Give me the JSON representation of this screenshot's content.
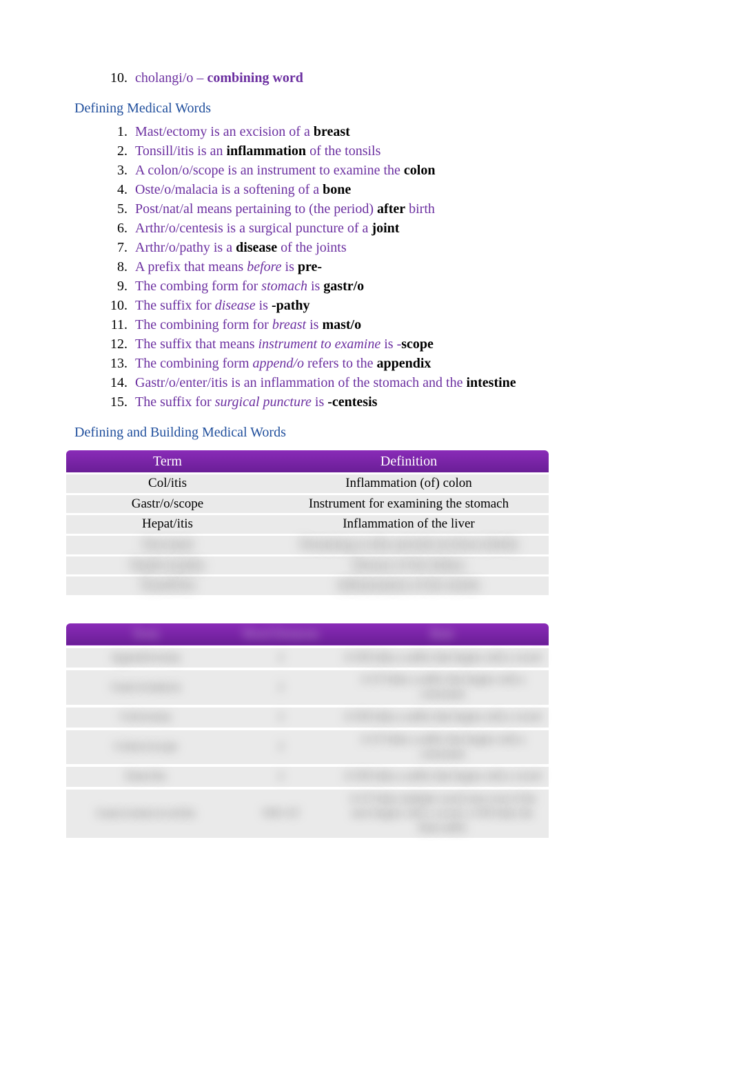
{
  "intro_item": {
    "number": "10.",
    "prefix": "cholangi/o – ",
    "bold": "combining word"
  },
  "section1_heading": "Defining Medical Words",
  "section1_items": [
    {
      "pre": "Mast/ectomy is an excision of a ",
      "bold": "breast",
      "post": ""
    },
    {
      "pre": "Tonsill/itis is an ",
      "bold": "inflammation",
      "post": " of the tonsils"
    },
    {
      "pre": "A colon/o/scope is an instrument to examine the ",
      "bold": "colon",
      "post": ""
    },
    {
      "pre": "Oste/o/malacia is a softening of a ",
      "bold": "bone",
      "post": ""
    },
    {
      "pre": "Post/nat/al means pertaining to (the period) ",
      "bold": "after",
      "post": " birth"
    },
    {
      "pre": "Arthr/o/centesis is a surgical puncture of a ",
      "bold": "joint",
      "post": ""
    },
    {
      "pre": "Arthr/o/pathy is a ",
      "bold": "disease",
      "post": " of the joints"
    },
    {
      "pre": "A prefix that means ",
      "italic": "before",
      "mid": " is ",
      "bold": "pre-",
      "post": ""
    },
    {
      "pre": "The combing form for ",
      "italic": "stomach",
      "mid": " is ",
      "bold": "gastr/o",
      "post": ""
    },
    {
      "pre": "The suffix for ",
      "italic": "disease",
      "mid": " is ",
      "bold": "-pathy",
      "post": ""
    },
    {
      "pre": "The combining form for ",
      "italic": "breast",
      "mid": " is ",
      "bold": "mast/o",
      "post": ""
    },
    {
      "pre": "The suffix that means ",
      "italic": "instrument to examine",
      "mid": " is -",
      "bold": "scope",
      "post": ""
    },
    {
      "pre": "The combining form ",
      "italic": "append/o",
      "mid": " refers to the ",
      "bold": "appendix",
      "post": ""
    },
    {
      "pre": "Gastr/o/enter/itis is an inflammation of the stomach and the ",
      "bold": "intestine",
      "post": ""
    },
    {
      "pre": "The suffix for ",
      "italic": "surgical puncture",
      "mid": " is ",
      "bold": "-centesis",
      "post": ""
    }
  ],
  "section2_heading": "Defining and Building Medical Words",
  "table1": {
    "headers": {
      "term": "Term",
      "definition": "Definition"
    },
    "rows": [
      {
        "term": "Col/itis",
        "definition": "Inflammation (of) colon"
      },
      {
        "term": "Gastr/o/scope",
        "definition": "Instrument for examining the stomach"
      },
      {
        "term": "Hepat/itis",
        "definition": "Inflammation of the liver"
      }
    ],
    "blur_rows": [
      {
        "term": "Neo/natal",
        "definition": "Pertaining to (the period) newborn (birth)"
      },
      {
        "term": "Nephr/o/pathy",
        "definition": "Disease of the kidney"
      },
      {
        "term": "Tonsill/itis",
        "definition": "Inflammation of the tonsils"
      }
    ]
  },
  "table2": {
    "headers": {
      "c1": "Term",
      "c2": "Word Elements",
      "c3": "Rule"
    },
    "rows": [
      {
        "c1": "Append/ectomy",
        "c2": "2",
        "c3": "A WR links a suffix that begins with a vowel"
      },
      {
        "c1": "Gastr/o/malacia",
        "c2": "2",
        "c3": "A CF links a suffix that begins with a consonant"
      },
      {
        "c1": "Col/ectomy",
        "c2": "2",
        "c3": "A WR links a suffix that begins with a vowel"
      },
      {
        "c1": "Colon/o/scope",
        "c2": "2",
        "c3": "A CF links a suffix that begins with a consonant"
      },
      {
        "c1": "Enter/itis",
        "c2": "2",
        "c3": "A WR links a suffix that begins with a vowel"
      },
      {
        "c1": "Gastr/o/enter/o/col/itis",
        "c2": "WR+CF",
        "c3": "A CF links multiple word roots even if the next begins with a vowel; a WR links the final suffix"
      }
    ]
  },
  "colors": {
    "purple_text": "#6b2fa0",
    "blue_text": "#1f4e9c",
    "black": "#000000",
    "header_gradient_top": "#8a2bb8",
    "header_gradient_bottom": "#6a1e96",
    "row_bg": "#eaeaea",
    "page_bg": "#ffffff"
  }
}
